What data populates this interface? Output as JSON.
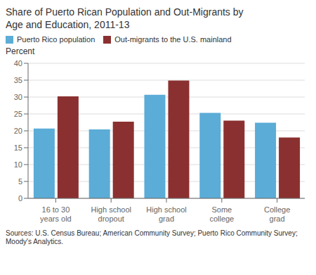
{
  "chart_data": {
    "type": "bar",
    "title": "Share of Puerto Rican Population and Out-Migrants by\nAge and Education, 2011-13",
    "ylabel": "Percent",
    "categories": [
      "16 to 30\nyears old",
      "High school\ndropout",
      "High school\ngrad",
      "Some\ncollege",
      "College\ngrad"
    ],
    "series": [
      {
        "name": "Puerto Rico population",
        "color": "#5BACD6",
        "values": [
          20.7,
          20.4,
          30.7,
          25.3,
          22.4
        ]
      },
      {
        "name": "Out-migrants to the U.S. mainland",
        "color": "#8B3030",
        "values": [
          30.2,
          22.7,
          34.9,
          23.0,
          18.0
        ]
      }
    ],
    "ylim": [
      0,
      40
    ],
    "yticks": [
      0,
      5,
      10,
      15,
      20,
      25,
      30,
      35,
      40
    ],
    "grid": true,
    "legend": "upper left",
    "annotations": [
      "Sources: U.S. Census Bureau; American Community Survey; Puerto Rico Community Survey;\nMoody's Analytics."
    ]
  }
}
